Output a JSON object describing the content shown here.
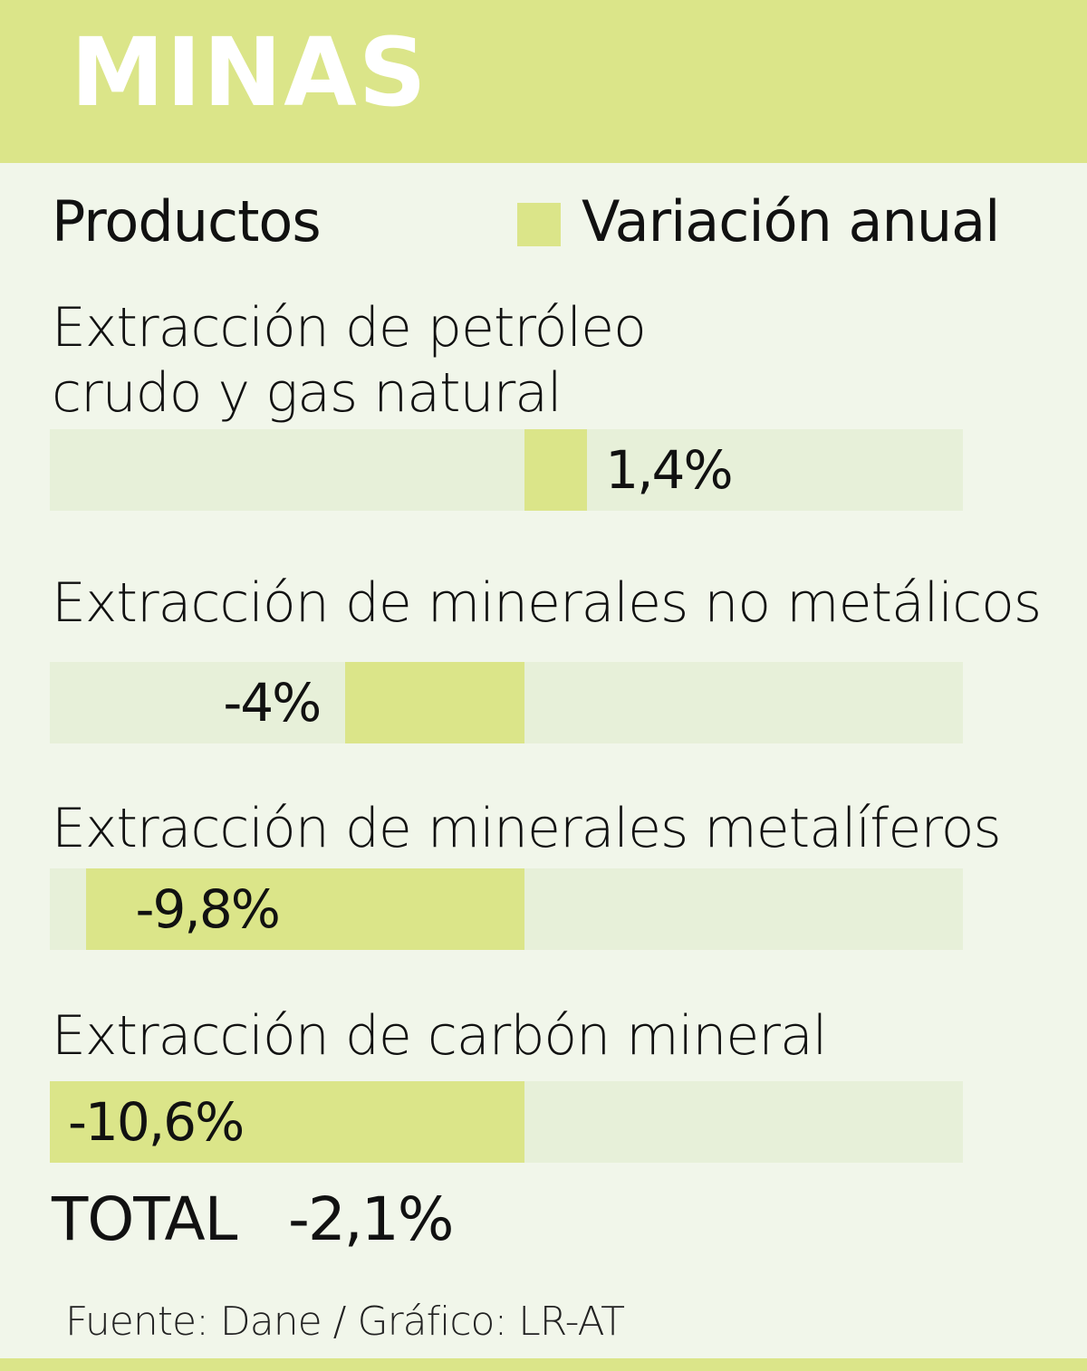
{
  "header": {
    "title": "MINAS"
  },
  "columns": {
    "products": "Productos",
    "legend": "Variación anual"
  },
  "chart_data": {
    "type": "bar",
    "orientation": "horizontal",
    "categories_lines": [
      [
        "Extracción de petróleo",
        "crudo y gas natural"
      ],
      [
        "Extracción de minerales no metálicos"
      ],
      [
        "Extracción de minerales metalíferos"
      ],
      [
        "Extracción de carbón mineral"
      ]
    ],
    "values": [
      1.4,
      -4.0,
      -9.8,
      -10.6
    ],
    "value_labels": [
      "1,4%",
      "-4%",
      "-9,8%",
      "-10,6%"
    ],
    "series": [
      {
        "name": "Variación anual"
      }
    ],
    "xlim": [
      -10.6,
      9.8
    ],
    "bar_color": "#dbe589",
    "track_color": "#e7f0d9"
  },
  "total": {
    "label": "TOTAL",
    "value": "-2,1%"
  },
  "source": "Fuente: Dane / Gráfico: LR-AT",
  "colors": {
    "accent": "#dbe589",
    "background": "#f1f6ea"
  }
}
